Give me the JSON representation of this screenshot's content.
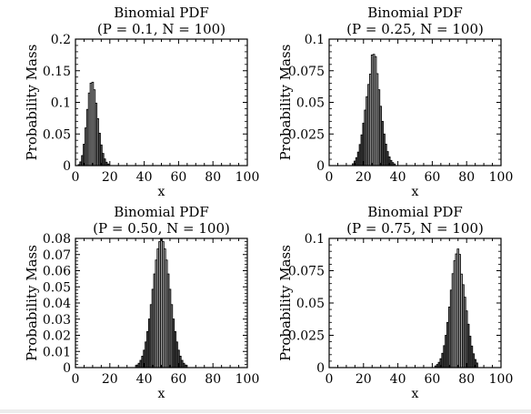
{
  "chart_data": [
    {
      "type": "bar",
      "title": "Binomial PDF",
      "subtitle": "(P = 0.1, N = 100)",
      "xlabel": "x",
      "ylabel": "Probability Mass",
      "xlim": [
        0,
        100
      ],
      "ylim": [
        0,
        0.2
      ],
      "xticks": [
        "0",
        "20",
        "40",
        "60",
        "80",
        "100"
      ],
      "yticks": [
        "0",
        "0.05",
        "0.1",
        "0.15",
        "0.2"
      ],
      "x": [
        2,
        3,
        4,
        5,
        6,
        7,
        8,
        9,
        10,
        11,
        12,
        13,
        14,
        15,
        16,
        17,
        18,
        19
      ],
      "values": [
        0.0016,
        0.0059,
        0.0159,
        0.0339,
        0.0596,
        0.0889,
        0.1148,
        0.1304,
        0.1319,
        0.1199,
        0.0988,
        0.0743,
        0.0513,
        0.0327,
        0.0193,
        0.0106,
        0.0054,
        0.0026
      ]
    },
    {
      "type": "bar",
      "title": "Binomial PDF",
      "subtitle": "(P = 0.25, N = 100)",
      "xlabel": "x",
      "ylabel": "Probability Mass",
      "xlim": [
        0,
        100
      ],
      "ylim": [
        0,
        0.1
      ],
      "xticks": [
        "0",
        "20",
        "40",
        "60",
        "80",
        "100"
      ],
      "yticks": [
        "0",
        "0.025",
        "0.05",
        "0.075",
        "0.1"
      ],
      "x": [
        14,
        15,
        16,
        17,
        18,
        19,
        20,
        21,
        22,
        23,
        24,
        25,
        26,
        27,
        28,
        29,
        30,
        31,
        32,
        33,
        34,
        35,
        36,
        37,
        38
      ],
      "values": [
        0.0015,
        0.0036,
        0.0063,
        0.0107,
        0.0167,
        0.0243,
        0.0336,
        0.0439,
        0.0545,
        0.0642,
        0.0724,
        0.0875,
        0.088,
        0.0862,
        0.0727,
        0.06,
        0.0469,
        0.035,
        0.025,
        0.017,
        0.0111,
        0.0069,
        0.0041,
        0.0024,
        0.0013
      ]
    },
    {
      "type": "bar",
      "title": "Binomial PDF",
      "subtitle": "(P = 0.50, N = 100)",
      "xlabel": "x",
      "ylabel": "Probability Mass",
      "xlim": [
        0,
        100
      ],
      "ylim": [
        0,
        0.08
      ],
      "xticks": [
        "0",
        "20",
        "40",
        "60",
        "80",
        "100"
      ],
      "yticks": [
        "0",
        "0.01",
        "0.02",
        "0.03",
        "0.04",
        "0.05",
        "0.06",
        "0.07",
        "0.08"
      ],
      "x": [
        36,
        37,
        38,
        39,
        40,
        41,
        42,
        43,
        44,
        45,
        46,
        47,
        48,
        49,
        50,
        51,
        52,
        53,
        54,
        55,
        56,
        57,
        58,
        59,
        60,
        61,
        62,
        63,
        64
      ],
      "values": [
        0.0016,
        0.0027,
        0.0045,
        0.0071,
        0.0108,
        0.0159,
        0.0223,
        0.0301,
        0.039,
        0.0485,
        0.058,
        0.0666,
        0.0735,
        0.078,
        0.0796,
        0.078,
        0.0735,
        0.0666,
        0.058,
        0.0485,
        0.039,
        0.0301,
        0.0223,
        0.0159,
        0.0108,
        0.0071,
        0.0045,
        0.0027,
        0.0016
      ]
    },
    {
      "type": "bar",
      "title": "Binomial PDF",
      "subtitle": "(P = 0.75, N = 100)",
      "xlabel": "x",
      "ylabel": "Probability Mass",
      "xlim": [
        0,
        100
      ],
      "ylim": [
        0,
        0.1
      ],
      "xticks": [
        "0",
        "20",
        "40",
        "60",
        "80",
        "100"
      ],
      "yticks": [
        "0",
        "0.025",
        "0.05",
        "0.075",
        "0.1"
      ],
      "x": [
        62,
        63,
        64,
        65,
        66,
        67,
        68,
        69,
        70,
        71,
        72,
        73,
        74,
        75,
        76,
        77,
        78,
        79,
        80,
        81,
        82,
        83,
        84,
        85,
        86
      ],
      "values": [
        0.0013,
        0.0024,
        0.0041,
        0.0069,
        0.0111,
        0.017,
        0.025,
        0.035,
        0.0469,
        0.06,
        0.0727,
        0.0827,
        0.088,
        0.0918,
        0.0876,
        0.0724,
        0.0642,
        0.0545,
        0.0439,
        0.0336,
        0.0243,
        0.0167,
        0.0107,
        0.0063,
        0.0036
      ]
    }
  ]
}
